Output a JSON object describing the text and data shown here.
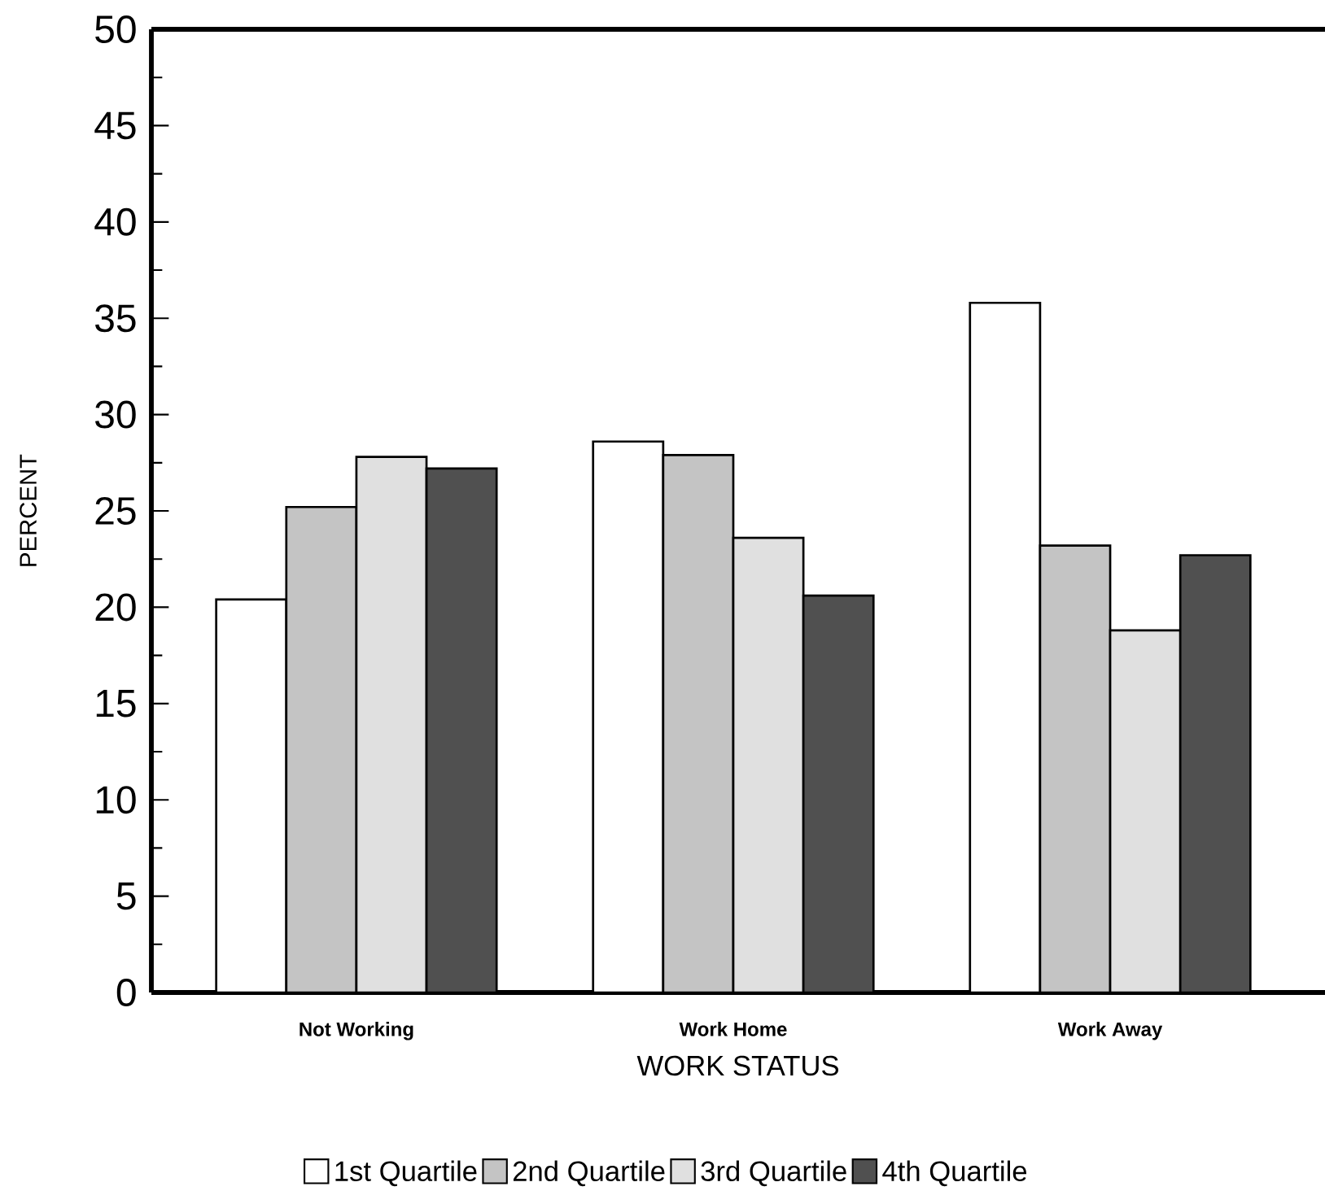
{
  "chart_data": {
    "type": "bar",
    "xlabel": "WORK STATUS",
    "ylabel": "PERCENT",
    "categories": [
      "Not Working",
      "Work Home",
      "Work Away"
    ],
    "series": [
      {
        "name": "1st Quartile",
        "color": "#ffffff",
        "values": [
          20.4,
          28.6,
          35.8
        ]
      },
      {
        "name": "2nd Quartile",
        "color": "#c4c4c4",
        "values": [
          25.2,
          27.9,
          23.2
        ]
      },
      {
        "name": "3rd Quartile",
        "color": "#e0e0e0",
        "values": [
          27.8,
          23.6,
          18.8
        ]
      },
      {
        "name": "4th Quartile",
        "color": "#505050",
        "values": [
          27.2,
          20.6,
          22.7
        ]
      }
    ],
    "ylim": [
      0,
      50
    ],
    "yticks": [
      0,
      5,
      10,
      15,
      20,
      25,
      30,
      35,
      40,
      45,
      50
    ],
    "grid": false,
    "legend": "bottom"
  }
}
